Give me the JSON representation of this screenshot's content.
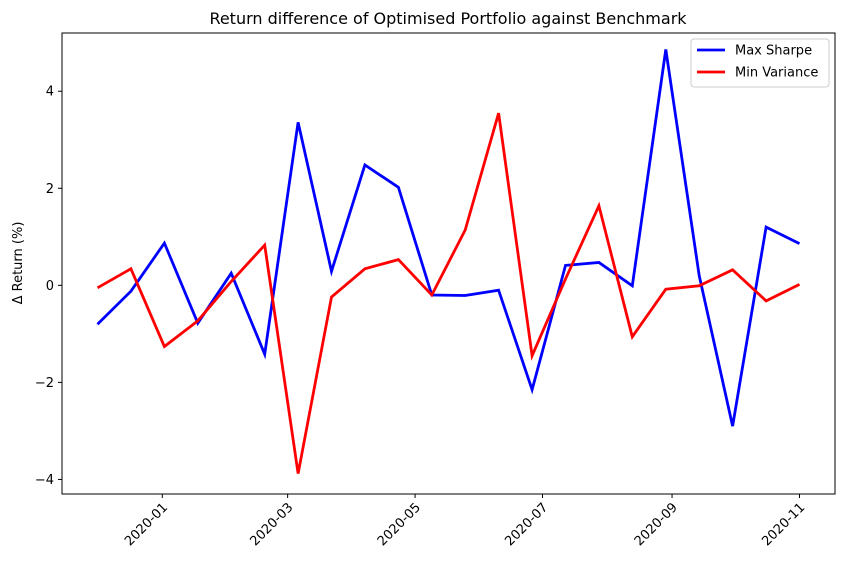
{
  "chart_data": {
    "type": "line",
    "title": "Return difference of Optimised Portfolio against Benchmark",
    "xlabel": "",
    "ylabel": "Δ Return (%)",
    "x": [
      "2019-12-01",
      "2019-12-17",
      "2020-01-02",
      "2020-01-18",
      "2020-02-03",
      "2020-02-19",
      "2020-03-06",
      "2020-03-22",
      "2020-04-07",
      "2020-04-23",
      "2020-05-09",
      "2020-05-25",
      "2020-06-10",
      "2020-06-26",
      "2020-07-12",
      "2020-07-28",
      "2020-08-13",
      "2020-08-29",
      "2020-09-14",
      "2020-09-30",
      "2020-10-16",
      "2020-11-01"
    ],
    "xlim": [
      "2019-11-14",
      "2020-11-18"
    ],
    "ylim": [
      -4.3,
      5.2
    ],
    "x_ticks": [
      {
        "date": "2020-01-01",
        "label": "2020-01"
      },
      {
        "date": "2020-03-01",
        "label": "2020-03"
      },
      {
        "date": "2020-05-01",
        "label": "2020-05"
      },
      {
        "date": "2020-07-01",
        "label": "2020-07"
      },
      {
        "date": "2020-09-01",
        "label": "2020-09"
      },
      {
        "date": "2020-11-01",
        "label": "2020-11"
      }
    ],
    "y_ticks": [
      {
        "value": 4,
        "label": "4"
      },
      {
        "value": 2,
        "label": "2"
      },
      {
        "value": 0,
        "label": "0"
      },
      {
        "value": -2,
        "label": "−2"
      },
      {
        "value": -4,
        "label": "−4"
      }
    ],
    "grid": false,
    "legend_position": "top-right",
    "series": [
      {
        "name": "Max Sharpe",
        "color": "#0000ff",
        "values": [
          -0.8,
          -0.12,
          0.87,
          -0.78,
          0.25,
          -1.42,
          3.36,
          0.29,
          2.48,
          2.02,
          -0.2,
          -0.21,
          -0.1,
          -2.15,
          0.41,
          0.47,
          -0.01,
          4.86,
          0.2,
          -2.9,
          1.2,
          0.86
        ]
      },
      {
        "name": "Min Variance",
        "color": "#ff0000",
        "values": [
          -0.05,
          0.34,
          -1.26,
          -0.73,
          0.08,
          0.83,
          -3.88,
          -0.24,
          0.34,
          0.53,
          -0.2,
          1.14,
          3.55,
          -1.45,
          0.13,
          1.64,
          -1.06,
          -0.08,
          -0.01,
          0.32,
          -0.32,
          0.02
        ]
      }
    ]
  }
}
